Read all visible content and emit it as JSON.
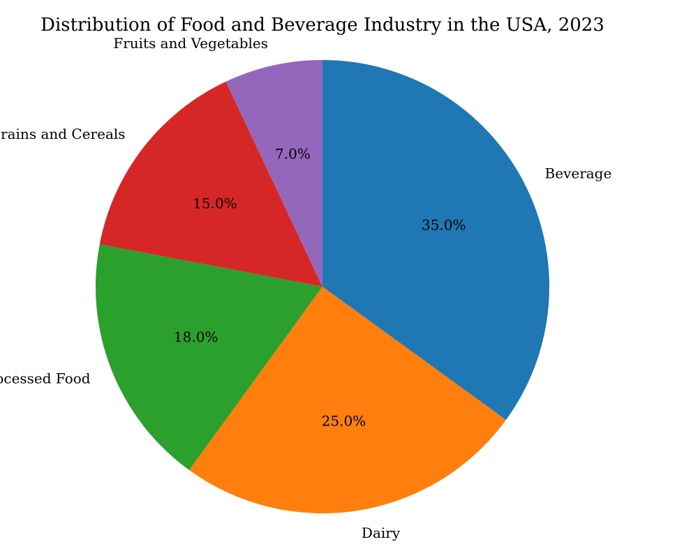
{
  "chart_data": {
    "type": "pie",
    "title": "Distribution of Food and Beverage Industry in the USA, 2023",
    "categories": [
      "Beverage",
      "Dairy",
      "Processed Food",
      "Grains and Cereals",
      "Fruits and Vegetables"
    ],
    "values": [
      35.0,
      25.0,
      18.0,
      15.0,
      7.0
    ],
    "value_labels": [
      "35.0%",
      "25.0%",
      "18.0%",
      "15.0%",
      "7.0%"
    ],
    "colors": [
      "#1f77b4",
      "#ff7f0e",
      "#2ca02c",
      "#d62728",
      "#9467bd"
    ],
    "start_angle_deg": 90,
    "direction": "clockwise",
    "legend": "none"
  }
}
